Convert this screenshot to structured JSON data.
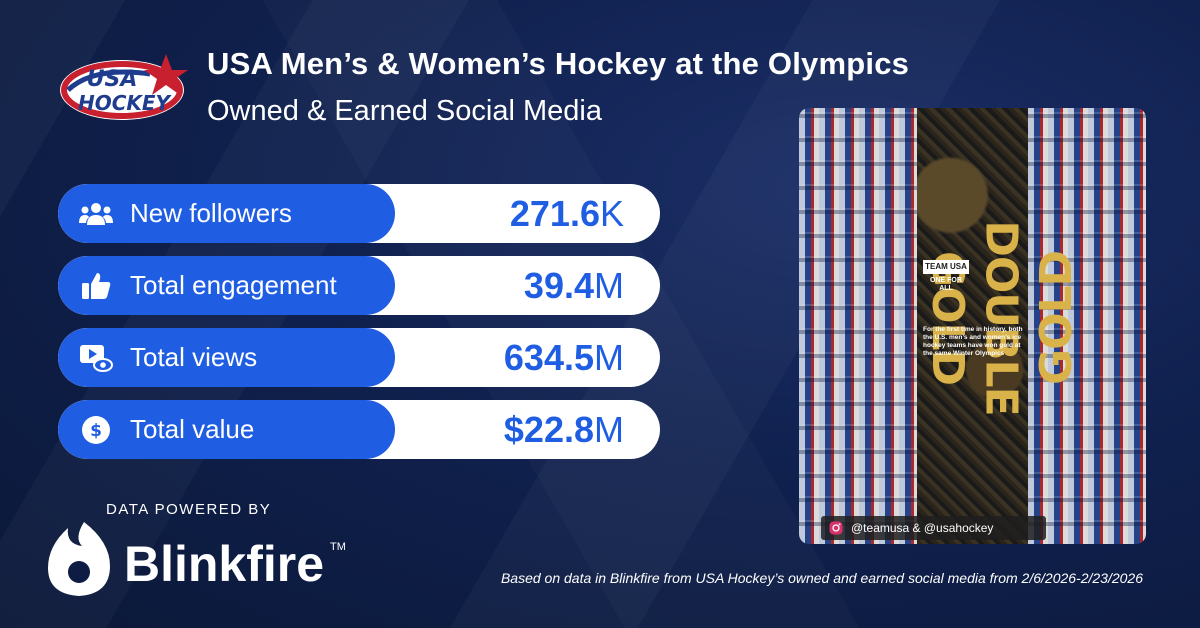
{
  "header": {
    "logo_text_top": "USA",
    "logo_text_bottom": "HOCKEY",
    "title": "USA Men’s & Women’s Hockey at the Olympics",
    "subtitle": "Owned & Earned Social Media"
  },
  "stats": [
    {
      "label": "New followers",
      "value": "271.6",
      "unit": "K",
      "icon": "followers-icon"
    },
    {
      "label": "Total engagement",
      "value": "39.4",
      "unit": "M",
      "icon": "thumbs-up-icon"
    },
    {
      "label": "Total views",
      "value": "634.5",
      "unit": "M",
      "icon": "video-view-icon"
    },
    {
      "label": "Total value",
      "value": "$22.8",
      "unit": "M",
      "icon": "dollar-icon"
    }
  ],
  "powered_by": {
    "label": "DATA POWERED BY",
    "brand": "Blinkfire",
    "trademark": "TM"
  },
  "post": {
    "headline_1": "DOUBLE",
    "headline_2": "GOLD",
    "brand_line_1": "TEAM USA",
    "brand_line_2": "ONE FOR ALL",
    "blurb": "For the first time in history, both the U.S. men’s and women’s ice hockey teams have won gold at the same Winter Olympics",
    "handle": "@teamusa & @usahockey"
  },
  "footnote": "Based on data in Blinkfire from USA Hockey’s owned and earned social media from 2/6/2026-2/23/2026",
  "colors": {
    "background": "#0e1c44",
    "accent_blue": "#1f5ee3",
    "gold": "#d9b24a",
    "usa_red": "#c8202f"
  }
}
